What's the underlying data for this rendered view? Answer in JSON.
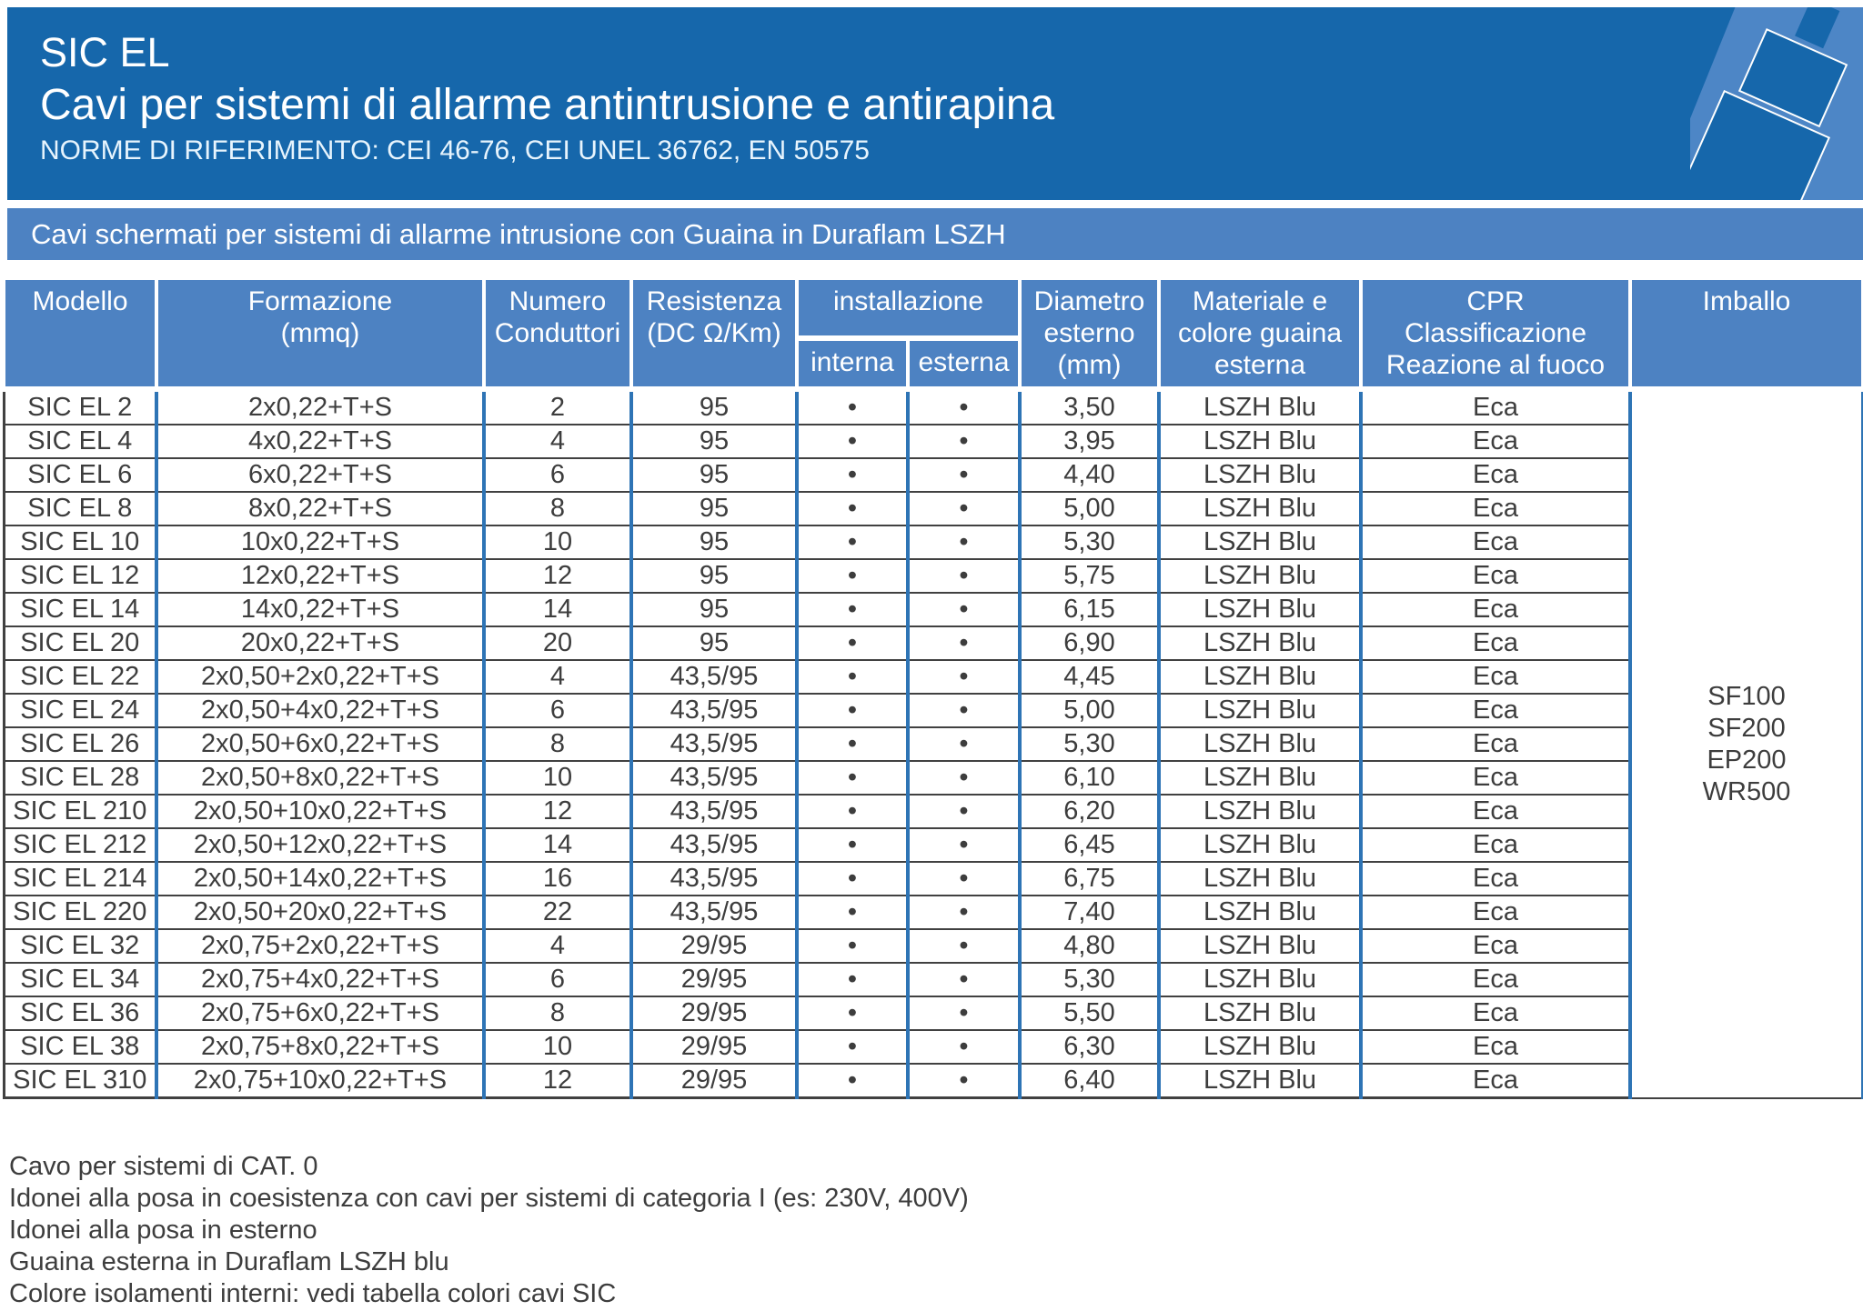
{
  "header": {
    "product_line": "SIC EL",
    "title": "Cavi per sistemi di allarme antintrusione e antirapina",
    "norms": "NORME DI RIFERIMENTO: CEI 46-76, CEI UNEL 36762, EN 50575"
  },
  "banner": "Cavi schermati per sistemi di allarme intrusione con Guaina in Duraflam LSZH",
  "table": {
    "headers": {
      "modello": "Modello",
      "formazione_l1": "Formazione",
      "formazione_l2": "(mmq)",
      "numero_l1": "Numero",
      "numero_l2": "Conduttori",
      "resistenza_l1": "Resistenza",
      "resistenza_l2": "(DC Ω/Km)",
      "installazione": "installazione",
      "interna": "interna",
      "esterna": "esterna",
      "diametro_l1": "Diametro",
      "diametro_l2": "esterno",
      "diametro_l3": "(mm)",
      "materiale_l1": "Materiale e",
      "materiale_l2": "colore guaina",
      "materiale_l3": "esterna",
      "cpr_l1": "CPR",
      "cpr_l2": "Classificazione",
      "cpr_l3": "Reazione al fuoco",
      "imballo": "Imballo"
    },
    "rows": [
      {
        "model": "SIC EL 2",
        "formation": "2x0,22+T+S",
        "conductors": "2",
        "resistance": "95",
        "interna": "•",
        "esterna": "•",
        "diameter": "3,50",
        "material": "LSZH Blu",
        "cpr": "Eca"
      },
      {
        "model": "SIC EL 4",
        "formation": "4x0,22+T+S",
        "conductors": "4",
        "resistance": "95",
        "interna": "•",
        "esterna": "•",
        "diameter": "3,95",
        "material": "LSZH Blu",
        "cpr": "Eca"
      },
      {
        "model": "SIC EL 6",
        "formation": "6x0,22+T+S",
        "conductors": "6",
        "resistance": "95",
        "interna": "•",
        "esterna": "•",
        "diameter": "4,40",
        "material": "LSZH Blu",
        "cpr": "Eca"
      },
      {
        "model": "SIC EL 8",
        "formation": "8x0,22+T+S",
        "conductors": "8",
        "resistance": "95",
        "interna": "•",
        "esterna": "•",
        "diameter": "5,00",
        "material": "LSZH Blu",
        "cpr": "Eca"
      },
      {
        "model": "SIC EL 10",
        "formation": "10x0,22+T+S",
        "conductors": "10",
        "resistance": "95",
        "interna": "•",
        "esterna": "•",
        "diameter": "5,30",
        "material": "LSZH Blu",
        "cpr": "Eca"
      },
      {
        "model": "SIC EL 12",
        "formation": "12x0,22+T+S",
        "conductors": "12",
        "resistance": "95",
        "interna": "•",
        "esterna": "•",
        "diameter": "5,75",
        "material": "LSZH Blu",
        "cpr": "Eca"
      },
      {
        "model": "SIC EL 14",
        "formation": "14x0,22+T+S",
        "conductors": "14",
        "resistance": "95",
        "interna": "•",
        "esterna": "•",
        "diameter": "6,15",
        "material": "LSZH Blu",
        "cpr": "Eca"
      },
      {
        "model": "SIC EL 20",
        "formation": "20x0,22+T+S",
        "conductors": "20",
        "resistance": "95",
        "interna": "•",
        "esterna": "•",
        "diameter": "6,90",
        "material": "LSZH Blu",
        "cpr": "Eca"
      },
      {
        "model": "SIC EL 22",
        "formation": "2x0,50+2x0,22+T+S",
        "conductors": "4",
        "resistance": "43,5/95",
        "interna": "•",
        "esterna": "•",
        "diameter": "4,45",
        "material": "LSZH Blu",
        "cpr": "Eca"
      },
      {
        "model": "SIC EL 24",
        "formation": "2x0,50+4x0,22+T+S",
        "conductors": "6",
        "resistance": "43,5/95",
        "interna": "•",
        "esterna": "•",
        "diameter": "5,00",
        "material": "LSZH Blu",
        "cpr": "Eca"
      },
      {
        "model": "SIC EL 26",
        "formation": "2x0,50+6x0,22+T+S",
        "conductors": "8",
        "resistance": "43,5/95",
        "interna": "•",
        "esterna": "•",
        "diameter": "5,30",
        "material": "LSZH Blu",
        "cpr": "Eca"
      },
      {
        "model": "SIC EL 28",
        "formation": "2x0,50+8x0,22+T+S",
        "conductors": "10",
        "resistance": "43,5/95",
        "interna": "•",
        "esterna": "•",
        "diameter": "6,10",
        "material": "LSZH Blu",
        "cpr": "Eca"
      },
      {
        "model": "SIC EL 210",
        "formation": "2x0,50+10x0,22+T+S",
        "conductors": "12",
        "resistance": "43,5/95",
        "interna": "•",
        "esterna": "•",
        "diameter": "6,20",
        "material": "LSZH Blu",
        "cpr": "Eca"
      },
      {
        "model": "SIC EL 212",
        "formation": "2x0,50+12x0,22+T+S",
        "conductors": "14",
        "resistance": "43,5/95",
        "interna": "•",
        "esterna": "•",
        "diameter": "6,45",
        "material": "LSZH Blu",
        "cpr": "Eca"
      },
      {
        "model": "SIC EL 214",
        "formation": "2x0,50+14x0,22+T+S",
        "conductors": "16",
        "resistance": "43,5/95",
        "interna": "•",
        "esterna": "•",
        "diameter": "6,75",
        "material": "LSZH Blu",
        "cpr": "Eca"
      },
      {
        "model": "SIC EL 220",
        "formation": "2x0,50+20x0,22+T+S",
        "conductors": "22",
        "resistance": "43,5/95",
        "interna": "•",
        "esterna": "•",
        "diameter": "7,40",
        "material": "LSZH Blu",
        "cpr": "Eca"
      },
      {
        "model": "SIC EL 32",
        "formation": "2x0,75+2x0,22+T+S",
        "conductors": "4",
        "resistance": "29/95",
        "interna": "•",
        "esterna": "•",
        "diameter": "4,80",
        "material": "LSZH Blu",
        "cpr": "Eca"
      },
      {
        "model": "SIC EL 34",
        "formation": "2x0,75+4x0,22+T+S",
        "conductors": "6",
        "resistance": "29/95",
        "interna": "•",
        "esterna": "•",
        "diameter": "5,30",
        "material": "LSZH Blu",
        "cpr": "Eca"
      },
      {
        "model": "SIC EL 36",
        "formation": "2x0,75+6x0,22+T+S",
        "conductors": "8",
        "resistance": "29/95",
        "interna": "•",
        "esterna": "•",
        "diameter": "5,50",
        "material": "LSZH Blu",
        "cpr": "Eca"
      },
      {
        "model": "SIC EL 38",
        "formation": "2x0,75+8x0,22+T+S",
        "conductors": "10",
        "resistance": "29/95",
        "interna": "•",
        "esterna": "•",
        "diameter": "6,30",
        "material": "LSZH Blu",
        "cpr": "Eca"
      },
      {
        "model": "SIC EL 310",
        "formation": "2x0,75+10x0,22+T+S",
        "conductors": "12",
        "resistance": "29/95",
        "interna": "•",
        "esterna": "•",
        "diameter": "6,40",
        "material": "LSZH Blu",
        "cpr": "Eca"
      }
    ],
    "imballo_values": [
      "SF100",
      "SF200",
      "EP200",
      "WR500"
    ]
  },
  "notes": [
    "Cavo per sistemi di CAT. 0",
    "Idonei alla posa in coesistenza con cavi per sistemi di categoria I (es: 230V, 400V)",
    "Idonei alla posa in esterno",
    "Guaina esterna in Duraflam LSZH blu",
    "Colore isolamenti interni: vedi tabella colori cavi SIC"
  ],
  "colors": {
    "header_blue": "#1667ab",
    "banner_blue": "#4d82c2",
    "grid_line_blue": "#2e74b5",
    "row_line_dark": "#414141",
    "text_dark": "#3d3d3d",
    "text_white": "#ffffff"
  }
}
